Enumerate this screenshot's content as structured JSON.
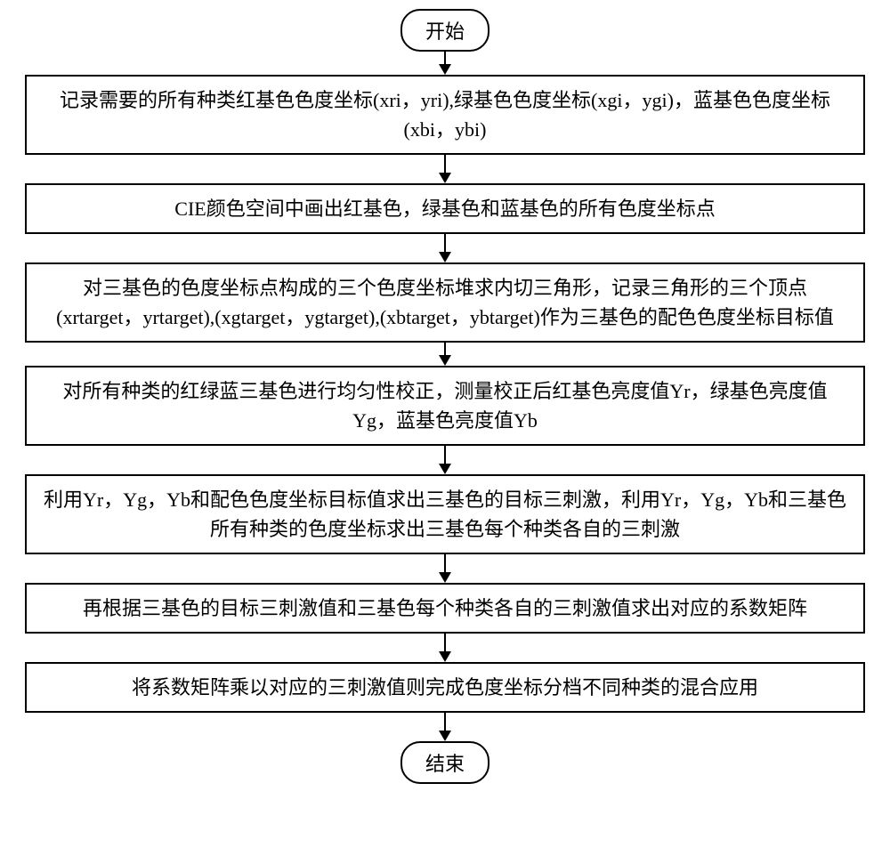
{
  "flowchart": {
    "type": "flowchart",
    "direction": "vertical",
    "background_color": "#ffffff",
    "node_border_color": "#000000",
    "node_border_width": 2,
    "arrow_color": "#000000",
    "font_size": 22,
    "font_family": "SimSun",
    "nodes": {
      "start": {
        "type": "terminator",
        "label": "开始"
      },
      "step1": {
        "type": "process",
        "label": "记录需要的所有种类红基色色度坐标(xri，yri),绿基色色度坐标(xgi，ygi)，蓝基色色度坐标(xbi，ybi)"
      },
      "step2": {
        "type": "process",
        "label": "CIE颜色空间中画出红基色，绿基色和蓝基色的所有色度坐标点"
      },
      "step3": {
        "type": "process",
        "label": "对三基色的色度坐标点构成的三个色度坐标堆求内切三角形，记录三角形的三个顶点(xrtarget，yrtarget),(xgtarget，ygtarget),(xbtarget，ybtarget)作为三基色的配色色度坐标目标值"
      },
      "step4": {
        "type": "process",
        "label": "对所有种类的红绿蓝三基色进行均匀性校正，测量校正后红基色亮度值Yr，绿基色亮度值Yg，蓝基色亮度值Yb"
      },
      "step5": {
        "type": "process",
        "label": "利用Yr，Yg，Yb和配色色度坐标目标值求出三基色的目标三刺激，利用Yr，Yg，Yb和三基色所有种类的色度坐标求出三基色每个种类各自的三刺激"
      },
      "step6": {
        "type": "process",
        "label": "再根据三基色的目标三刺激值和三基色每个种类各自的三刺激值求出对应的系数矩阵"
      },
      "step7": {
        "type": "process",
        "label": "将系数矩阵乘以对应的三刺激值则完成色度坐标分档不同种类的混合应用"
      },
      "end": {
        "type": "terminator",
        "label": "结束"
      }
    },
    "edges": [
      {
        "from": "start",
        "to": "step1"
      },
      {
        "from": "step1",
        "to": "step2"
      },
      {
        "from": "step2",
        "to": "step3"
      },
      {
        "from": "step3",
        "to": "step4"
      },
      {
        "from": "step4",
        "to": "step5"
      },
      {
        "from": "step5",
        "to": "step6"
      },
      {
        "from": "step6",
        "to": "step7"
      },
      {
        "from": "step7",
        "to": "end"
      }
    ]
  }
}
